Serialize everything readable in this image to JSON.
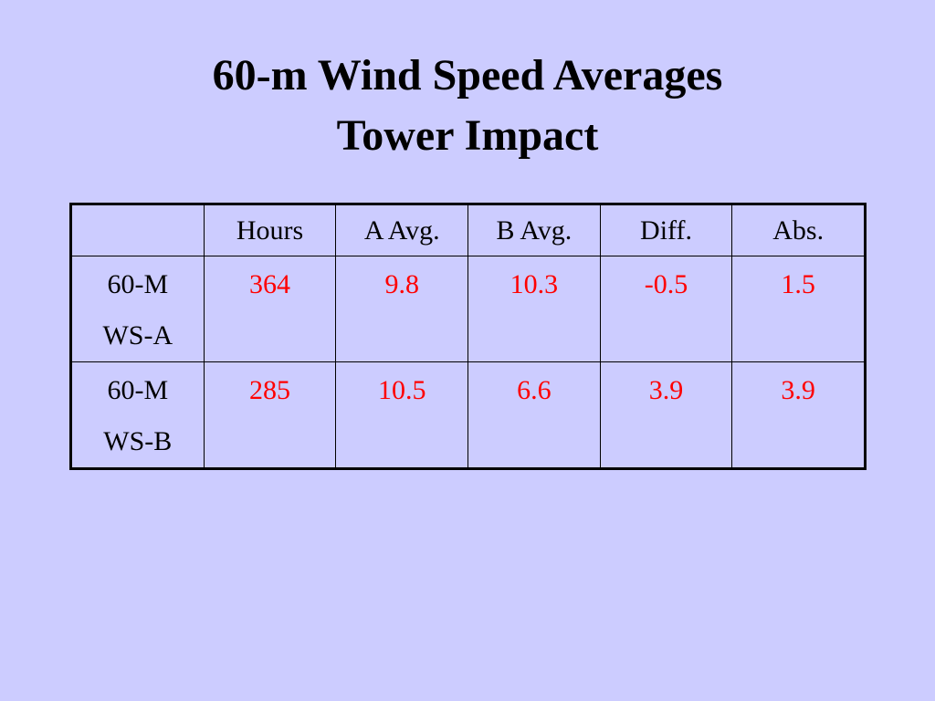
{
  "title": [
    "60-m Wind Speed Averages",
    "Tower Impact"
  ],
  "table": {
    "columns": [
      "Hours",
      "A Avg.",
      "B Avg.",
      "Diff.",
      "Abs."
    ],
    "rows": [
      {
        "label": [
          "60-M",
          "WS-A"
        ],
        "values": [
          364,
          9.8,
          10.3,
          -0.5,
          1.5
        ]
      },
      {
        "label": [
          "60-M",
          "WS-B"
        ],
        "values": [
          285,
          10.5,
          6.6,
          3.9,
          3.9
        ]
      }
    ],
    "value_color": "#ff0000"
  }
}
